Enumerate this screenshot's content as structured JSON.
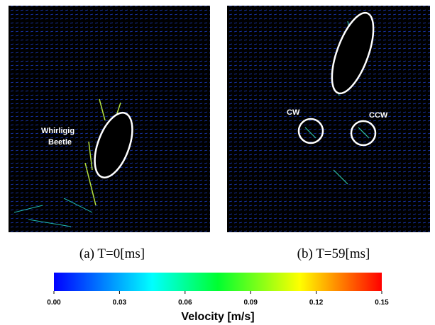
{
  "panels": [
    {
      "caption": "(a) T=0[ms]",
      "annotations": [
        "Whirligig",
        "Beetle"
      ]
    },
    {
      "caption": "(b) T=59[ms]",
      "annotations": [
        "CW",
        "CCW"
      ]
    }
  ],
  "colorbar": {
    "label": "Velocity [m/s]",
    "lim": [
      0,
      0.15
    ],
    "ticks": [
      {
        "value": 0,
        "label": "0.00"
      },
      {
        "value": 0.03,
        "label": "0.03"
      },
      {
        "value": 0.06,
        "label": "0.06"
      },
      {
        "value": 0.09,
        "label": "0.09"
      },
      {
        "value": 0.12,
        "label": "0.12"
      },
      {
        "value": 0.15,
        "label": "0.15"
      }
    ]
  }
}
